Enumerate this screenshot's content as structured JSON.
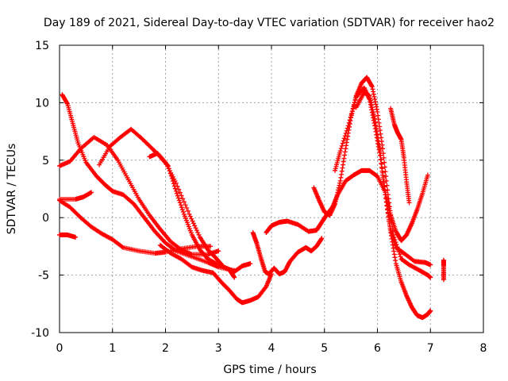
{
  "chart_data": {
    "type": "scatter",
    "title": "Day 189 of 2021, Sidereal Day-to-day VTEC variation (SDTVAR) for receiver hao2",
    "xlabel": "GPS time / hours",
    "ylabel": "SDTVAR / TECUs",
    "xlim": [
      0,
      8
    ],
    "ylim": [
      -10,
      15
    ],
    "xticks": [
      "0",
      "1",
      "2",
      "3",
      "4",
      "5",
      "6",
      "7",
      "8"
    ],
    "yticks": [
      "-10",
      "-5",
      "0",
      "5",
      "10",
      "15"
    ],
    "grid": true,
    "marker": "+",
    "color": "#ff0000",
    "series": [
      {
        "name": "s1",
        "points": [
          [
            0.05,
            10.7
          ],
          [
            0.15,
            9.9
          ],
          [
            0.25,
            8.2
          ],
          [
            0.35,
            6.5
          ],
          [
            0.5,
            4.8
          ],
          [
            0.7,
            3.6
          ],
          [
            0.85,
            2.9
          ],
          [
            1.0,
            2.3
          ],
          [
            1.2,
            2.0
          ],
          [
            1.4,
            1.2
          ],
          [
            1.6,
            0.0
          ],
          [
            1.8,
            -1.2
          ],
          [
            2.0,
            -2.2
          ],
          [
            2.2,
            -2.9
          ],
          [
            2.5,
            -3.4
          ],
          [
            2.8,
            -3.9
          ],
          [
            3.0,
            -4.3
          ],
          [
            3.3,
            -4.6
          ]
        ]
      },
      {
        "name": "s2",
        "points": [
          [
            0.0,
            1.6
          ],
          [
            0.3,
            1.6
          ],
          [
            0.45,
            1.8
          ],
          [
            0.6,
            2.2
          ]
        ]
      },
      {
        "name": "s3",
        "points": [
          [
            0.0,
            1.5
          ],
          [
            0.2,
            0.9
          ],
          [
            0.4,
            0.0
          ],
          [
            0.6,
            -0.8
          ],
          [
            0.8,
            -1.4
          ],
          [
            1.0,
            -1.9
          ],
          [
            1.2,
            -2.6
          ],
          [
            1.5,
            -2.9
          ],
          [
            1.8,
            -3.1
          ],
          [
            2.0,
            -3.0
          ],
          [
            2.3,
            -2.7
          ],
          [
            2.6,
            -2.5
          ],
          [
            2.85,
            -2.5
          ]
        ]
      },
      {
        "name": "s4",
        "points": [
          [
            0.0,
            -1.5
          ],
          [
            0.15,
            -1.5
          ],
          [
            0.3,
            -1.7
          ]
        ]
      },
      {
        "name": "s5",
        "points": [
          [
            0.0,
            4.5
          ],
          [
            0.2,
            4.9
          ],
          [
            0.4,
            6.0
          ],
          [
            0.65,
            7.0
          ],
          [
            0.9,
            6.3
          ],
          [
            1.1,
            5.0
          ],
          [
            1.3,
            3.3
          ],
          [
            1.5,
            1.6
          ],
          [
            1.7,
            0.2
          ],
          [
            1.9,
            -1.0
          ],
          [
            2.1,
            -2.1
          ],
          [
            2.3,
            -2.8
          ],
          [
            2.5,
            -3.2
          ],
          [
            2.8,
            -3.2
          ],
          [
            3.0,
            -2.9
          ]
        ]
      },
      {
        "name": "s6",
        "points": [
          [
            0.75,
            4.6
          ],
          [
            0.95,
            6.2
          ],
          [
            1.15,
            7.0
          ],
          [
            1.35,
            7.7
          ],
          [
            1.55,
            6.9
          ],
          [
            1.75,
            6.0
          ],
          [
            1.9,
            5.3
          ],
          [
            2.05,
            4.5
          ],
          [
            2.2,
            2.3
          ],
          [
            2.35,
            0.3
          ],
          [
            2.5,
            -1.5
          ],
          [
            2.65,
            -2.8
          ],
          [
            2.8,
            -3.6
          ],
          [
            3.0,
            -4.1
          ],
          [
            3.2,
            -4.5
          ],
          [
            3.3,
            -5.2
          ]
        ]
      },
      {
        "name": "s7",
        "points": [
          [
            1.7,
            5.3
          ],
          [
            1.85,
            5.6
          ],
          [
            2.0,
            4.8
          ],
          [
            2.2,
            3.0
          ],
          [
            2.45,
            0.3
          ],
          [
            2.65,
            -1.7
          ],
          [
            2.8,
            -2.8
          ],
          [
            2.95,
            -3.5
          ],
          [
            3.1,
            -4.3
          ],
          [
            3.3,
            -4.7
          ],
          [
            3.45,
            -4.2
          ],
          [
            3.6,
            -4.0
          ]
        ]
      },
      {
        "name": "s8",
        "points": [
          [
            1.9,
            -2.4
          ],
          [
            2.1,
            -3.1
          ],
          [
            2.3,
            -3.6
          ],
          [
            2.5,
            -4.3
          ],
          [
            2.7,
            -4.6
          ],
          [
            2.9,
            -4.8
          ],
          [
            3.05,
            -5.6
          ],
          [
            3.2,
            -6.3
          ],
          [
            3.35,
            -7.1
          ],
          [
            3.45,
            -7.4
          ],
          [
            3.6,
            -7.2
          ],
          [
            3.75,
            -6.9
          ],
          [
            3.9,
            -6.0
          ],
          [
            4.0,
            -4.9
          ]
        ]
      },
      {
        "name": "s9",
        "points": [
          [
            3.65,
            -1.3
          ],
          [
            3.72,
            -2.2
          ],
          [
            3.8,
            -3.5
          ],
          [
            3.88,
            -4.7
          ],
          [
            3.95,
            -4.9
          ],
          [
            4.05,
            -4.4
          ],
          [
            4.15,
            -4.9
          ],
          [
            4.25,
            -4.7
          ],
          [
            4.35,
            -3.8
          ],
          [
            4.5,
            -3.0
          ],
          [
            4.65,
            -2.6
          ],
          [
            4.75,
            -2.9
          ],
          [
            4.85,
            -2.5
          ],
          [
            4.95,
            -1.8
          ]
        ]
      },
      {
        "name": "s10",
        "points": [
          [
            3.9,
            -1.3
          ],
          [
            4.0,
            -0.7
          ],
          [
            4.15,
            -0.4
          ],
          [
            4.3,
            -0.3
          ],
          [
            4.5,
            -0.6
          ],
          [
            4.7,
            -1.2
          ],
          [
            4.85,
            -1.1
          ],
          [
            4.95,
            -0.4
          ],
          [
            5.05,
            0.3
          ],
          [
            5.15,
            0.9
          ],
          [
            5.25,
            2.0
          ],
          [
            5.4,
            3.2
          ],
          [
            5.55,
            3.7
          ],
          [
            5.7,
            4.1
          ],
          [
            5.85,
            4.1
          ],
          [
            6.0,
            3.6
          ],
          [
            6.15,
            2.2
          ],
          [
            6.25,
            0.2
          ],
          [
            6.35,
            -1.2
          ],
          [
            6.45,
            -2.0
          ],
          [
            6.55,
            -1.5
          ],
          [
            6.65,
            -0.5
          ],
          [
            6.75,
            0.7
          ],
          [
            6.85,
            2.1
          ],
          [
            6.95,
            3.7
          ]
        ]
      },
      {
        "name": "s11",
        "points": [
          [
            4.8,
            2.6
          ],
          [
            4.9,
            1.5
          ],
          [
            5.0,
            0.5
          ],
          [
            5.1,
            0.2
          ],
          [
            5.2,
            1.2
          ],
          [
            5.3,
            3.2
          ],
          [
            5.4,
            6.0
          ],
          [
            5.5,
            8.7
          ],
          [
            5.6,
            10.6
          ],
          [
            5.7,
            11.7
          ],
          [
            5.8,
            12.2
          ],
          [
            5.9,
            11.4
          ],
          [
            6.0,
            9.2
          ],
          [
            6.1,
            6.0
          ],
          [
            6.2,
            2.0
          ],
          [
            6.3,
            -1.5
          ],
          [
            6.45,
            -3.6
          ],
          [
            6.6,
            -4.1
          ],
          [
            6.8,
            -4.6
          ],
          [
            6.95,
            -5.0
          ],
          [
            7.0,
            -5.2
          ]
        ]
      },
      {
        "name": "s12",
        "points": [
          [
            5.2,
            4.1
          ],
          [
            5.3,
            5.8
          ],
          [
            5.45,
            8.0
          ],
          [
            5.6,
            10.5
          ],
          [
            5.75,
            11.3
          ],
          [
            5.85,
            10.3
          ],
          [
            5.95,
            8.0
          ],
          [
            6.05,
            5.4
          ],
          [
            6.15,
            2.0
          ],
          [
            6.25,
            -1.3
          ],
          [
            6.35,
            -4.0
          ],
          [
            6.45,
            -5.6
          ],
          [
            6.55,
            -6.8
          ],
          [
            6.65,
            -7.8
          ],
          [
            6.75,
            -8.5
          ],
          [
            6.85,
            -8.7
          ],
          [
            6.95,
            -8.4
          ],
          [
            7.0,
            -8.1
          ]
        ]
      },
      {
        "name": "s13",
        "points": [
          [
            5.6,
            9.6
          ],
          [
            5.75,
            10.9
          ],
          [
            5.85,
            10.6
          ],
          [
            5.95,
            8.6
          ],
          [
            6.05,
            5.8
          ],
          [
            6.15,
            2.0
          ],
          [
            6.25,
            -1.1
          ],
          [
            6.35,
            -2.6
          ],
          [
            6.5,
            -3.1
          ],
          [
            6.7,
            -3.8
          ],
          [
            6.9,
            -3.9
          ],
          [
            7.0,
            -4.1
          ]
        ]
      },
      {
        "name": "s14",
        "points": [
          [
            6.25,
            9.5
          ],
          [
            6.32,
            8.1
          ],
          [
            6.38,
            7.4
          ],
          [
            6.45,
            6.8
          ],
          [
            6.5,
            5.2
          ],
          [
            6.55,
            3.1
          ],
          [
            6.6,
            1.3
          ]
        ]
      },
      {
        "name": "s15",
        "points": [
          [
            7.25,
            -3.7
          ],
          [
            7.25,
            -4.2
          ],
          [
            7.25,
            -5.4
          ]
        ]
      }
    ]
  }
}
